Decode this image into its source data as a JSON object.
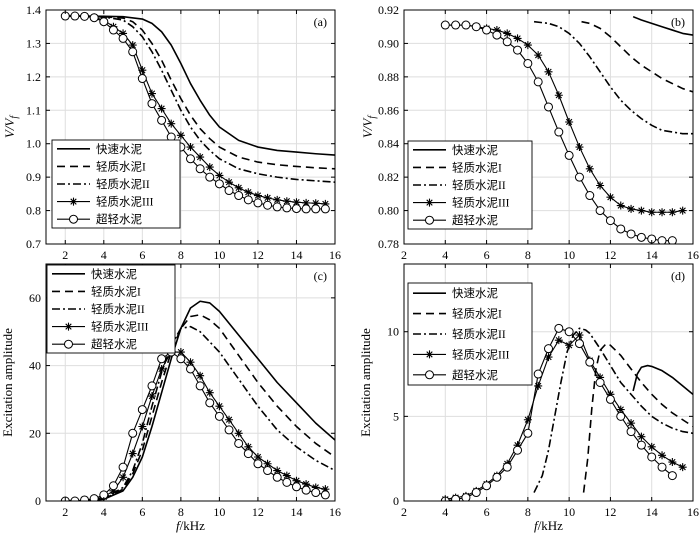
{
  "chart_data": [
    {
      "type": "line",
      "panel_label": "(a)",
      "xlabel": "f/kHz",
      "ylabel": "V/Vf",
      "xlim": [
        1,
        16
      ],
      "ylim": [
        0.7,
        1.4
      ],
      "xticks": [
        2,
        4,
        6,
        8,
        10,
        12,
        14,
        16
      ],
      "yticks": [
        0.7,
        0.8,
        0.9,
        1.0,
        1.1,
        1.2,
        1.3,
        1.4
      ],
      "ytick_labels": [
        "0.7",
        "0.8",
        "0.9",
        "1.0",
        "1.1",
        "1.2",
        "1.3",
        "1.4"
      ],
      "grid": true,
      "legend_position": "bottom-left",
      "series": [
        {
          "name": "快速水泥",
          "style": "solid",
          "marker": "none",
          "x": [
            2,
            3,
            4,
            5,
            6,
            6.5,
            7,
            7.5,
            8,
            8.5,
            9,
            9.5,
            10,
            11,
            12,
            13,
            14,
            15,
            16
          ],
          "y": [
            1.382,
            1.382,
            1.381,
            1.38,
            1.373,
            1.36,
            1.335,
            1.295,
            1.24,
            1.18,
            1.13,
            1.085,
            1.05,
            1.01,
            0.99,
            0.98,
            0.975,
            0.97,
            0.966
          ]
        },
        {
          "name": "轻质水泥I",
          "style": "dashed",
          "marker": "none",
          "x": [
            2,
            3,
            4,
            5,
            5.5,
            6,
            6.5,
            7,
            7.5,
            8,
            8.5,
            9,
            9.5,
            10,
            11,
            12,
            13,
            14,
            15,
            16
          ],
          "y": [
            1.382,
            1.382,
            1.38,
            1.376,
            1.365,
            1.34,
            1.3,
            1.25,
            1.19,
            1.135,
            1.085,
            1.045,
            1.015,
            0.99,
            0.96,
            0.945,
            0.937,
            0.932,
            0.928,
            0.925
          ]
        },
        {
          "name": "轻质水泥II",
          "style": "dashdot",
          "marker": "none",
          "x": [
            2,
            3,
            4,
            5,
            5.5,
            6,
            6.5,
            7,
            7.5,
            8,
            8.5,
            9,
            9.5,
            10,
            11,
            12,
            13,
            14,
            15,
            16
          ],
          "y": [
            1.382,
            1.382,
            1.379,
            1.37,
            1.35,
            1.32,
            1.275,
            1.22,
            1.16,
            1.1,
            1.05,
            1.01,
            0.98,
            0.955,
            0.925,
            0.91,
            0.9,
            0.893,
            0.889,
            0.885
          ]
        },
        {
          "name": "轻质水泥III",
          "style": "solid",
          "marker": "asterisk",
          "x": [
            2,
            2.5,
            3,
            3.5,
            4,
            4.5,
            5,
            5.5,
            6,
            6.5,
            7,
            7.5,
            8,
            8.5,
            9,
            9.5,
            10,
            10.5,
            11,
            11.5,
            12,
            12.5,
            13,
            13.5,
            14,
            14.5,
            15,
            15.5
          ],
          "y": [
            1.382,
            1.382,
            1.381,
            1.378,
            1.37,
            1.35,
            1.33,
            1.295,
            1.22,
            1.15,
            1.105,
            1.06,
            1.025,
            0.99,
            0.96,
            0.93,
            0.905,
            0.885,
            0.868,
            0.855,
            0.845,
            0.838,
            0.832,
            0.828,
            0.825,
            0.823,
            0.822,
            0.82
          ]
        },
        {
          "name": "超轻水泥",
          "style": "solid",
          "marker": "circle",
          "x": [
            2,
            2.5,
            3,
            3.5,
            4,
            4.5,
            5,
            5.5,
            6,
            6.5,
            7,
            7.5,
            8,
            8.5,
            9,
            9.5,
            10,
            10.5,
            11,
            11.5,
            12,
            12.5,
            13,
            13.5,
            14,
            14.5,
            15,
            15.5
          ],
          "y": [
            1.382,
            1.382,
            1.381,
            1.377,
            1.365,
            1.34,
            1.315,
            1.275,
            1.195,
            1.12,
            1.07,
            1.02,
            0.99,
            0.955,
            0.925,
            0.9,
            0.88,
            0.86,
            0.845,
            0.832,
            0.823,
            0.816,
            0.811,
            0.808,
            0.806,
            0.805,
            0.805,
            0.805
          ]
        }
      ]
    },
    {
      "type": "line",
      "panel_label": "(b)",
      "xlabel": "",
      "ylabel": "V/Vf",
      "xlim": [
        2,
        16
      ],
      "ylim": [
        0.78,
        0.92
      ],
      "xticks": [
        2,
        4,
        6,
        8,
        10,
        12,
        14,
        16
      ],
      "yticks": [
        0.78,
        0.8,
        0.82,
        0.84,
        0.86,
        0.88,
        0.9,
        0.92
      ],
      "ytick_labels": [
        "0.78",
        "0.80",
        "0.82",
        "0.84",
        "0.86",
        "0.88",
        "0.90",
        "0.92"
      ],
      "grid": true,
      "legend_position": "bottom-left",
      "series": [
        {
          "name": "快速水泥",
          "style": "solid",
          "marker": "none",
          "x": [
            13.1,
            13.5,
            14,
            14.5,
            15,
            15.5,
            16
          ],
          "y": [
            0.916,
            0.914,
            0.912,
            0.91,
            0.908,
            0.906,
            0.905
          ]
        },
        {
          "name": "轻质水泥I",
          "style": "dashed",
          "marker": "none",
          "x": [
            10.6,
            11,
            11.5,
            12,
            12.5,
            13,
            13.5,
            14,
            14.5,
            15,
            15.5,
            16
          ],
          "y": [
            0.913,
            0.912,
            0.909,
            0.904,
            0.898,
            0.892,
            0.887,
            0.883,
            0.879,
            0.876,
            0.873,
            0.871
          ]
        },
        {
          "name": "轻质水泥II",
          "style": "dashdot",
          "marker": "none",
          "x": [
            8.3,
            9,
            9.5,
            10,
            10.5,
            11,
            11.5,
            12,
            12.5,
            13,
            13.5,
            14,
            14.5,
            15,
            15.5,
            16
          ],
          "y": [
            0.913,
            0.912,
            0.91,
            0.906,
            0.9,
            0.892,
            0.883,
            0.874,
            0.866,
            0.86,
            0.855,
            0.851,
            0.848,
            0.847,
            0.846,
            0.846
          ]
        },
        {
          "name": "轻质水泥III",
          "style": "solid",
          "marker": "asterisk",
          "x": [
            4,
            4.5,
            5,
            5.5,
            6,
            6.5,
            7,
            7.5,
            8,
            8.5,
            9,
            9.5,
            10,
            10.5,
            11,
            11.5,
            12,
            12.5,
            13,
            13.5,
            14,
            14.5,
            15,
            15.5
          ],
          "y": [
            0.911,
            0.911,
            0.911,
            0.91,
            0.909,
            0.908,
            0.906,
            0.903,
            0.899,
            0.893,
            0.883,
            0.869,
            0.853,
            0.838,
            0.825,
            0.815,
            0.808,
            0.803,
            0.801,
            0.8,
            0.799,
            0.799,
            0.799,
            0.8
          ]
        },
        {
          "name": "超轻水泥",
          "style": "solid",
          "marker": "circle",
          "x": [
            4,
            4.5,
            5,
            5.5,
            6,
            6.5,
            7,
            7.5,
            8,
            8.5,
            9,
            9.5,
            10,
            10.5,
            11,
            11.5,
            12,
            12.5,
            13,
            13.5,
            14,
            14.5,
            15
          ],
          "y": [
            0.911,
            0.911,
            0.911,
            0.91,
            0.908,
            0.905,
            0.901,
            0.896,
            0.888,
            0.877,
            0.862,
            0.847,
            0.833,
            0.82,
            0.809,
            0.8,
            0.794,
            0.789,
            0.786,
            0.784,
            0.783,
            0.782,
            0.782
          ]
        }
      ]
    },
    {
      "type": "line",
      "panel_label": "(c)",
      "xlabel": "f/kHz",
      "ylabel": "Excitation amplitude",
      "xlim": [
        1,
        16
      ],
      "ylim": [
        0,
        70
      ],
      "xticks": [
        2,
        4,
        6,
        8,
        10,
        12,
        14,
        16
      ],
      "yticks": [
        0,
        20,
        40,
        60
      ],
      "ytick_labels": [
        "0",
        "20",
        "40",
        "60"
      ],
      "grid": true,
      "legend_position": "top-left",
      "series": [
        {
          "name": "快速水泥",
          "style": "solid",
          "marker": "none",
          "x": [
            2,
            3,
            4,
            5,
            5.5,
            6,
            6.5,
            7,
            7.5,
            8,
            8.5,
            9,
            9.5,
            10,
            11,
            12,
            13,
            14,
            15,
            16
          ],
          "y": [
            0,
            0,
            0.5,
            3,
            7,
            13,
            22,
            32,
            42,
            51,
            57,
            59,
            58.5,
            56,
            49,
            42,
            35,
            29,
            23,
            18
          ]
        },
        {
          "name": "轻质水泥I",
          "style": "dashed",
          "marker": "none",
          "x": [
            2,
            3,
            4,
            5,
            5.5,
            6,
            6.5,
            7,
            7.5,
            8,
            8.5,
            9,
            9.5,
            10,
            11,
            12,
            13,
            14,
            15,
            16
          ],
          "y": [
            0,
            0,
            0.5,
            3.5,
            8,
            15,
            25,
            35,
            44,
            51,
            54.5,
            55,
            53.5,
            51,
            43,
            35,
            28,
            22,
            17,
            13
          ]
        },
        {
          "name": "轻质水泥II",
          "style": "dashdot",
          "marker": "none",
          "x": [
            2,
            3,
            4,
            5,
            5.5,
            6,
            6.5,
            7,
            7.5,
            8,
            8.5,
            9,
            9.5,
            10,
            11,
            12,
            13,
            14,
            15,
            16
          ],
          "y": [
            0,
            0,
            0.7,
            4,
            9,
            17,
            28,
            38,
            46,
            51,
            51.5,
            50,
            47,
            44,
            36,
            28,
            21,
            16,
            12,
            9
          ]
        },
        {
          "name": "轻质水泥III",
          "style": "solid",
          "marker": "asterisk",
          "x": [
            2,
            2.5,
            3,
            3.5,
            4,
            4.5,
            5,
            5.5,
            6,
            6.5,
            7,
            7.5,
            8,
            8.5,
            9,
            9.5,
            10,
            10.5,
            11,
            11.5,
            12,
            12.5,
            13,
            13.5,
            14,
            14.5,
            15,
            15.5
          ],
          "y": [
            0,
            0,
            0.2,
            0.5,
            1.2,
            3,
            7,
            14,
            22,
            31,
            39,
            44,
            44,
            41,
            37,
            32,
            28,
            24,
            20,
            16,
            13,
            11,
            9,
            7.5,
            6,
            5,
            4,
            3.5
          ]
        },
        {
          "name": "超轻水泥",
          "style": "solid",
          "marker": "circle",
          "x": [
            2,
            2.5,
            3,
            3.5,
            4,
            4.5,
            5,
            5.5,
            6,
            6.5,
            7,
            7.5,
            8,
            8.5,
            9,
            9.5,
            10,
            10.5,
            11,
            11.5,
            12,
            12.5,
            13,
            13.5,
            14,
            14.5,
            15,
            15.5
          ],
          "y": [
            0,
            0,
            0.3,
            0.7,
            1.8,
            4.5,
            10,
            20,
            27,
            34,
            42,
            44,
            42,
            39,
            34,
            29,
            25,
            21,
            17,
            14,
            11,
            9,
            7,
            5.5,
            4.2,
            3.2,
            2.5,
            1.8
          ]
        }
      ]
    },
    {
      "type": "line",
      "panel_label": "(d)",
      "xlabel": "f/kHz",
      "ylabel": "Excitation amplitude",
      "xlim": [
        2,
        16
      ],
      "ylim": [
        0,
        14
      ],
      "xticks": [
        2,
        4,
        6,
        8,
        10,
        12,
        14,
        16
      ],
      "yticks": [
        0,
        5,
        10
      ],
      "ytick_labels": [
        "0",
        "5",
        "10"
      ],
      "grid": true,
      "legend_position": "top-left",
      "series": [
        {
          "name": "快速水泥",
          "style": "solid",
          "marker": "none",
          "x": [
            13.1,
            13.3,
            13.5,
            13.8,
            14,
            14.5,
            15,
            15.5,
            16
          ],
          "y": [
            6.5,
            7.5,
            7.9,
            8.0,
            7.95,
            7.7,
            7.3,
            6.8,
            6.3
          ]
        },
        {
          "name": "轻质水泥I",
          "style": "dashed",
          "marker": "none",
          "x": [
            10.7,
            10.9,
            11.1,
            11.3,
            11.5,
            11.8,
            12,
            12.5,
            13,
            13.5,
            14,
            14.5,
            15,
            15.5,
            16
          ],
          "y": [
            0.5,
            2.5,
            5.5,
            7.8,
            8.9,
            9.3,
            9.2,
            8.6,
            7.8,
            7.0,
            6.3,
            5.7,
            5.2,
            4.8,
            4.4
          ]
        },
        {
          "name": "轻质水泥II",
          "style": "dashdot",
          "marker": "none",
          "x": [
            8.3,
            8.7,
            9,
            9.3,
            9.6,
            9.9,
            10.2,
            10.5,
            10.8,
            11,
            11.5,
            12,
            12.5,
            13,
            13.5,
            14,
            14.5,
            15,
            15.5,
            16
          ],
          "y": [
            0.5,
            1.5,
            3,
            5,
            7,
            8.8,
            9.8,
            10.2,
            10.1,
            9.9,
            9,
            8,
            7,
            6.3,
            5.6,
            5.0,
            4.6,
            4.3,
            4.1,
            4.0
          ]
        },
        {
          "name": "轻质水泥III",
          "style": "solid",
          "marker": "asterisk",
          "x": [
            4,
            4.5,
            5,
            5.5,
            6,
            6.5,
            7,
            7.5,
            8,
            8.5,
            9,
            9.5,
            10,
            10.5,
            11,
            11.5,
            12,
            12.5,
            13,
            13.5,
            14,
            14.5,
            15,
            15.5
          ],
          "y": [
            0.1,
            0.2,
            0.3,
            0.6,
            1.0,
            1.5,
            2.2,
            3.3,
            4.8,
            6.8,
            8.5,
            9.5,
            9.2,
            9.8,
            8.3,
            7.3,
            6.3,
            5.4,
            4.6,
            3.8,
            3.2,
            2.7,
            2.3,
            2.0
          ]
        },
        {
          "name": "超轻水泥",
          "style": "solid",
          "marker": "circle",
          "x": [
            4,
            4.5,
            5,
            5.5,
            6,
            6.5,
            7,
            7.5,
            8,
            8.5,
            9,
            9.5,
            10,
            10.5,
            11,
            11.5,
            12,
            12.5,
            13,
            13.5,
            14,
            14.5,
            15
          ],
          "y": [
            0,
            0.1,
            0.2,
            0.5,
            0.9,
            1.4,
            2.0,
            3.0,
            4.0,
            7.5,
            9.0,
            10.2,
            10.0,
            9.3,
            8.2,
            7.0,
            6.0,
            5.0,
            4.1,
            3.3,
            2.6,
            2.0,
            1.5
          ]
        }
      ]
    }
  ]
}
